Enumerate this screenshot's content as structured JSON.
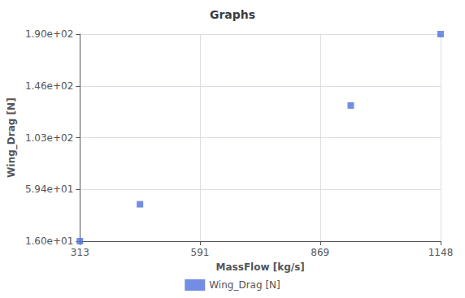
{
  "chart_data": {
    "type": "scatter",
    "title": "Graphs",
    "xlabel": "MassFlow [kg/s]",
    "ylabel": "Wing_Drag [N]",
    "series": [
      {
        "name": "Wing_Drag [N]",
        "x": [
          313,
          452,
          940,
          1148
        ],
        "values": [
          16.0,
          47.0,
          130.0,
          190.0
        ]
      }
    ],
    "xlim": [
      313,
      1148
    ],
    "ylim": [
      16.0,
      190.0
    ],
    "xticks": [
      313,
      591,
      869,
      1148
    ],
    "yticks": [
      {
        "value": 16.0,
        "label": "1.60e+01"
      },
      {
        "value": 59.4,
        "label": "5.94e+01"
      },
      {
        "value": 103.0,
        "label": "1.03e+02"
      },
      {
        "value": 146.0,
        "label": "1.46e+02"
      },
      {
        "value": 190.0,
        "label": "1.90e+02"
      }
    ],
    "grid": true,
    "legend": "bottom",
    "marker": "square"
  }
}
